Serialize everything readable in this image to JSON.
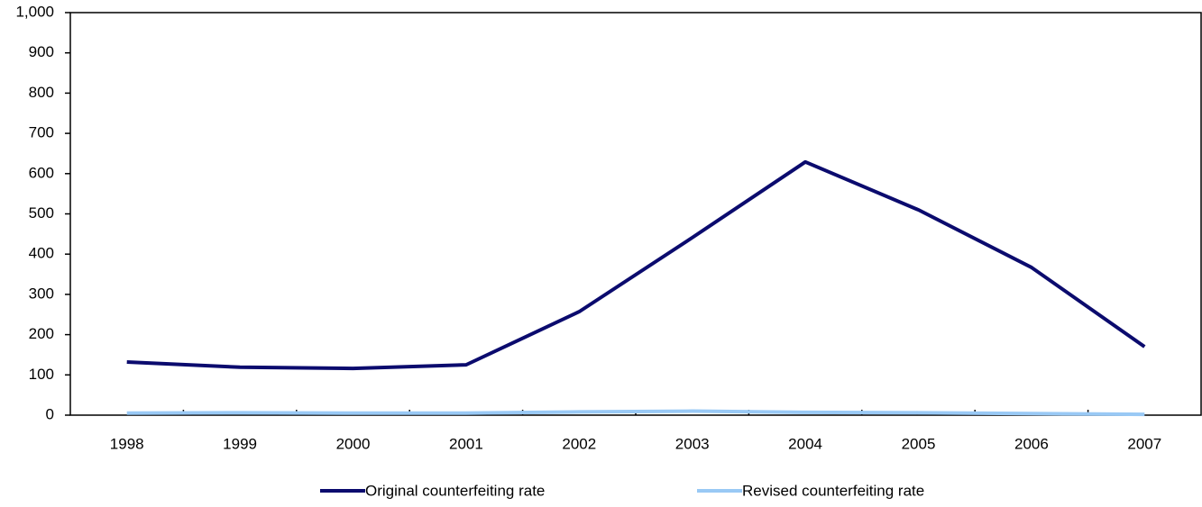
{
  "chart_data": {
    "type": "line",
    "categories": [
      "1998",
      "1999",
      "2000",
      "2001",
      "2002",
      "2003",
      "2004",
      "2005",
      "2006",
      "2007"
    ],
    "series": [
      {
        "name": "Original counterfeiting rate",
        "color": "#0b0b6e",
        "values": [
          132,
          119,
          116,
          125,
          257,
          441,
          629,
          510,
          367,
          170
        ]
      },
      {
        "name": "Revised counterfeiting rate",
        "color": "#99c9f5",
        "values": [
          5,
          6,
          5,
          5,
          8,
          10,
          7,
          6,
          4,
          2
        ]
      }
    ],
    "ylim": [
      0,
      1000
    ],
    "yticks": [
      0,
      100,
      200,
      300,
      400,
      500,
      600,
      700,
      800,
      900,
      {
        "value": 1000,
        "label": "1,000"
      }
    ],
    "legend": "bottom"
  }
}
